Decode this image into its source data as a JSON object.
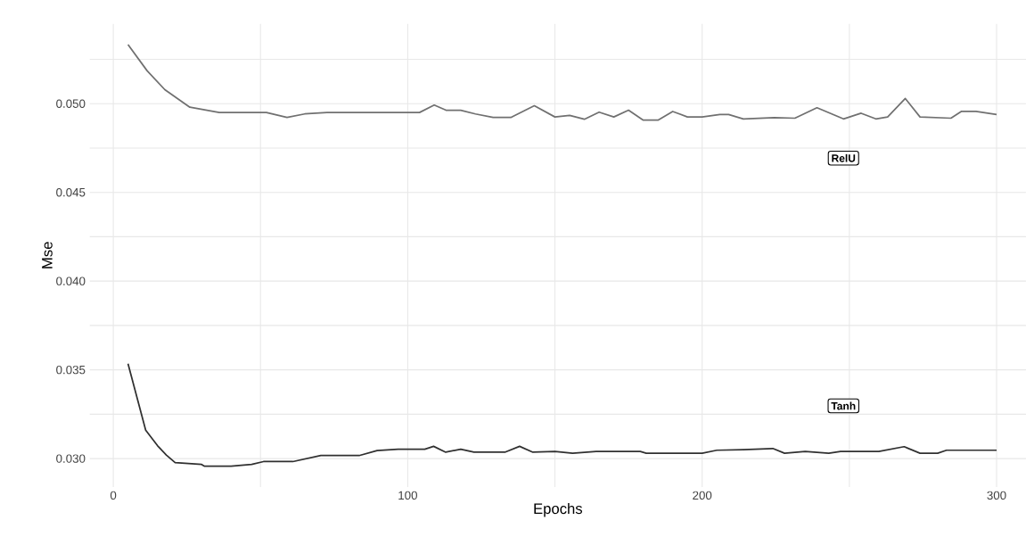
{
  "chart_data": {
    "type": "line",
    "xlabel": "Epochs",
    "ylabel": "Mse",
    "xlim": [
      -8,
      310
    ],
    "ylim": [
      0.0284,
      0.0545
    ],
    "xticks": [
      0,
      {
        "value": 50,
        "label": null
      },
      100,
      {
        "value": 150,
        "label": null
      },
      200,
      {
        "value": 250,
        "label": null
      },
      300
    ],
    "yticks": [
      {
        "value": 0.03,
        "label": "0.030"
      },
      {
        "value": 0.0325,
        "label": null
      },
      {
        "value": 0.035,
        "label": "0.035"
      },
      {
        "value": 0.0375,
        "label": null
      },
      {
        "value": 0.04,
        "label": "0.040"
      },
      {
        "value": 0.0425,
        "label": null
      },
      {
        "value": 0.045,
        "label": "0.045"
      },
      {
        "value": 0.0475,
        "label": null
      },
      {
        "value": 0.05,
        "label": "0.050"
      },
      {
        "value": 0.0525,
        "label": null
      }
    ],
    "grid": true,
    "series": [
      {
        "color": "#707070",
        "x": [
          5,
          11.5,
          17.5,
          26,
          36,
          52,
          59,
          65,
          72.6,
          104,
          109,
          113,
          118,
          123,
          129,
          135,
          143,
          150,
          155,
          160,
          165,
          170,
          175,
          180,
          185,
          190,
          195,
          200,
          206,
          209,
          214,
          224.5,
          231.5,
          239,
          248,
          254,
          259,
          263,
          269,
          274,
          284.5,
          288,
          293,
          300
        ],
        "values": [
          0.05333,
          0.05185,
          0.05079,
          0.0498,
          0.0495,
          0.0495,
          0.04922,
          0.04942,
          0.0495,
          0.0495,
          0.04992,
          0.04963,
          0.04963,
          0.04942,
          0.04922,
          0.04922,
          0.04988,
          0.04925,
          0.04934,
          0.04912,
          0.04952,
          0.04925,
          0.04963,
          0.04907,
          0.04907,
          0.04956,
          0.04925,
          0.04925,
          0.04939,
          0.04939,
          0.04914,
          0.04921,
          0.04918,
          0.04977,
          0.04914,
          0.04946,
          0.04914,
          0.04925,
          0.05029,
          0.04925,
          0.04918,
          0.04956,
          0.04956,
          0.04939
        ]
      },
      {
        "color": "#303030",
        "x": [
          5,
          11,
          15,
          18,
          21,
          30,
          31,
          40,
          47,
          51,
          61,
          70.5,
          83.5,
          89.6,
          96.7,
          105.8,
          108.8,
          112.9,
          118,
          122.5,
          133,
          138,
          142.5,
          150,
          156,
          164,
          179,
          181,
          200,
          205,
          214,
          224,
          228,
          235,
          243,
          247,
          260,
          268.6,
          274,
          280,
          283,
          300
        ],
        "values": [
          0.03535,
          0.0316,
          0.03073,
          0.0302,
          0.02977,
          0.02967,
          0.02957,
          0.02957,
          0.02967,
          0.02983,
          0.02983,
          0.03017,
          0.03017,
          0.03045,
          0.03053,
          0.03053,
          0.03069,
          0.03036,
          0.03053,
          0.03036,
          0.03036,
          0.03069,
          0.03036,
          0.0304,
          0.0303,
          0.0304,
          0.0304,
          0.0303,
          0.0303,
          0.03047,
          0.0305,
          0.03057,
          0.0303,
          0.0304,
          0.0303,
          0.0304,
          0.0304,
          0.03067,
          0.0303,
          0.0303,
          0.03047,
          0.03047
        ]
      }
    ],
    "annotations": [
      {
        "text": "RelU",
        "x": 248,
        "y": 0.04693
      },
      {
        "text": "Tanh",
        "x": 248,
        "y": 0.03297
      }
    ]
  }
}
